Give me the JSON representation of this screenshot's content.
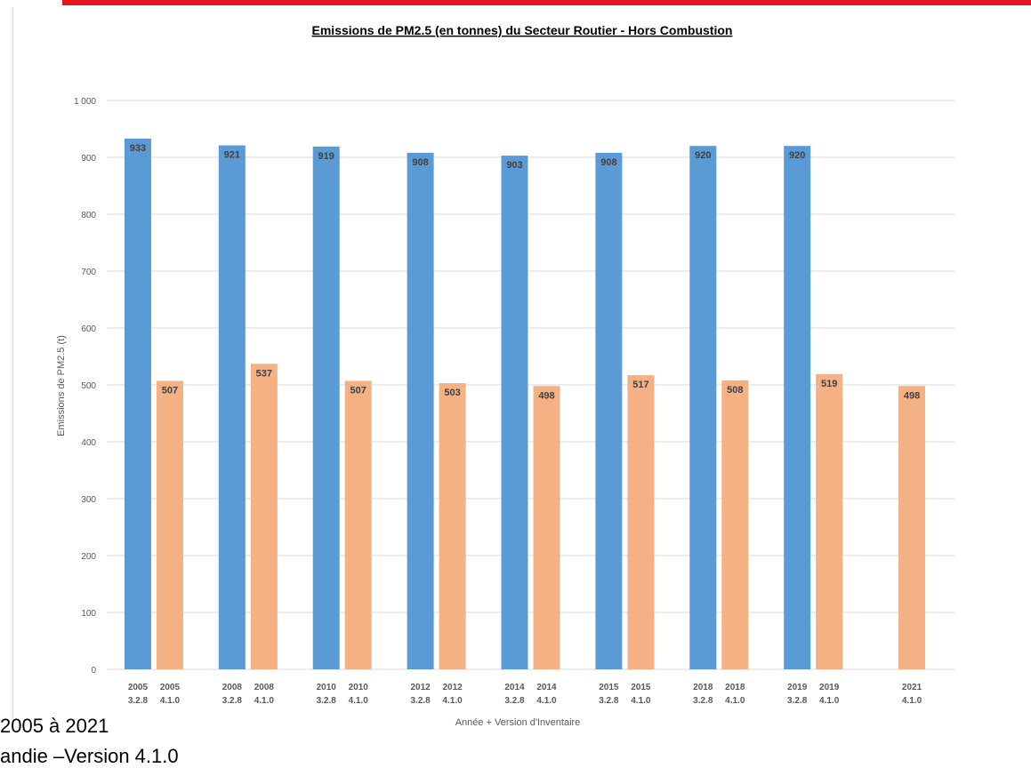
{
  "slide": {
    "line1": "2005 à 2021",
    "line2": "andie –Version 4.1.0"
  },
  "colors": {
    "top_bar": "#e8151f",
    "series_1": "#5b9bd5",
    "series_2": "#f4b183"
  },
  "chart_data": {
    "type": "bar",
    "title": "Emissions de PM2.5 (en tonnes) du Secteur Routier - Hors Combustion",
    "xlabel": "Année + Version d'Inventaire",
    "ylabel": "Emissions de PM2.5 (t)",
    "ylim": [
      0,
      1000
    ],
    "yticks": [
      0,
      100,
      200,
      300,
      400,
      500,
      600,
      700,
      800,
      900,
      1000
    ],
    "ytick_labels": [
      "0",
      "100",
      "200",
      "300",
      "400",
      "500",
      "600",
      "700",
      "800",
      "900",
      "1 000"
    ],
    "grid": true,
    "legend": "none",
    "categories": [
      "2005",
      "2008",
      "2010",
      "2012",
      "2014",
      "2015",
      "2018",
      "2019",
      "2021"
    ],
    "series": [
      {
        "version": "3.2.8",
        "values": [
          933,
          921,
          919,
          908,
          903,
          908,
          920,
          920,
          null
        ]
      },
      {
        "version": "4.1.0",
        "values": [
          507,
          537,
          507,
          503,
          498,
          517,
          508,
          519,
          498
        ]
      }
    ]
  }
}
